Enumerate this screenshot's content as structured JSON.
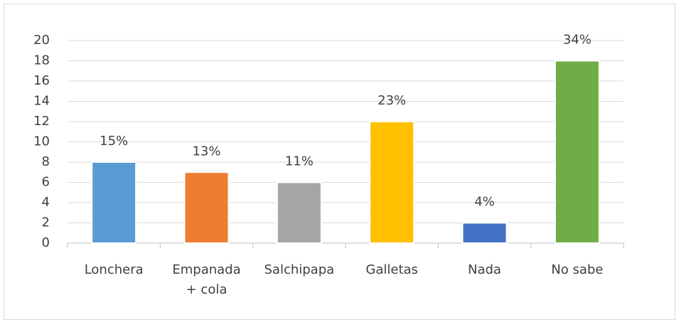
{
  "chart_data": {
    "type": "bar",
    "categories": [
      "Lonchera",
      "Empanada + cola",
      "Salchipapa",
      "Galletas",
      "Nada",
      "No sabe"
    ],
    "values": [
      8,
      7,
      6,
      12,
      2,
      18
    ],
    "labels": [
      "15%",
      "13%",
      "11%",
      "23%",
      "4%",
      "34%"
    ],
    "colors": [
      "#5b9bd5",
      "#ed7d31",
      "#a5a5a5",
      "#ffc000",
      "#4472c4",
      "#70ad47"
    ],
    "ylim": [
      0,
      20
    ],
    "yticks": [
      0,
      2,
      4,
      6,
      8,
      10,
      12,
      14,
      16,
      18,
      20
    ],
    "grid": true
  }
}
